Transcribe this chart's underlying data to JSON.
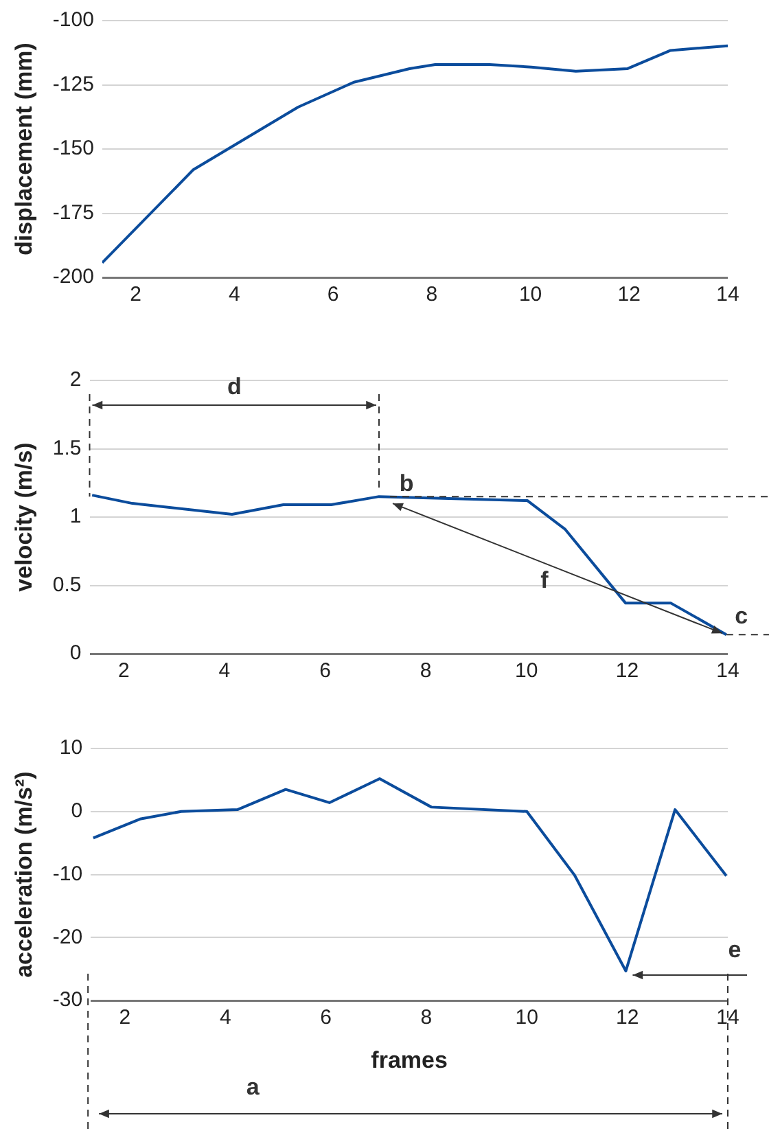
{
  "chart_data": [
    {
      "type": "line",
      "ylabel": "displacement (mm)",
      "x": [
        1.32,
        3.17,
        5.29,
        6.42,
        7.55,
        8.07,
        9.17,
        10.02,
        10.92,
        11.97,
        12.84,
        14
      ],
      "series": [
        {
          "color": "#0b4c9c",
          "values": [
            -194.3,
            -158,
            -133.7,
            -124,
            -118.7,
            -117.1,
            -117.1,
            -118.1,
            -119.7,
            -118.7,
            -111.6,
            -109.8
          ]
        }
      ],
      "xlim": [
        1.32,
        14
      ],
      "xticks": [
        2,
        4,
        6,
        8,
        10,
        12,
        14
      ],
      "ylim": [
        -200,
        -100
      ],
      "yticks": [
        -200,
        -175,
        -150,
        -125,
        -100
      ],
      "grid": "y",
      "marker": "none",
      "line_style": "solid"
    },
    {
      "type": "line",
      "ylabel": "velocity (m/s)",
      "x": [
        1.37,
        2.17,
        4.15,
        5.17,
        6.12,
        7.07,
        10.02,
        10.77,
        11.97,
        12.87,
        13.97
      ],
      "series": [
        {
          "color": "#0b4c9c",
          "values": [
            1.16,
            1.1,
            1.02,
            1.09,
            1.09,
            1.15,
            1.12,
            0.91,
            0.37,
            0.37,
            0.14
          ]
        }
      ],
      "xlim": [
        1.32,
        14
      ],
      "xticks": [
        2,
        4,
        6,
        8,
        10,
        12,
        14
      ],
      "ylim": [
        0,
        2
      ],
      "yticks": [
        0,
        0.5,
        1,
        1.5,
        2
      ],
      "grid": "y",
      "marker": "none",
      "line_style": "solid",
      "annotations": [
        {
          "text": "b",
          "x": 7.07,
          "y": 1.15
        },
        {
          "text": "c",
          "x": 13.97,
          "y": 0.14
        },
        "d",
        "f"
      ]
    },
    {
      "type": "line",
      "ylabel": "acceleration (m/s²)",
      "xlabel": "frames",
      "x": [
        1.37,
        2.3,
        3.12,
        4.24,
        5.2,
        6.07,
        7.07,
        8.1,
        10.0,
        10.95,
        11.97,
        12.95,
        13.97
      ],
      "series": [
        {
          "color": "#0b4c9c",
          "values": [
            -4.2,
            -1.2,
            0,
            0.3,
            3.5,
            1.4,
            5.2,
            0.7,
            0,
            -10.1,
            -25.3,
            0.3,
            -10.2
          ]
        }
      ],
      "xlim": [
        1.32,
        14
      ],
      "xticks": [
        2,
        4,
        6,
        8,
        10,
        12,
        14
      ],
      "ylim": [
        -30,
        10
      ],
      "yticks": [
        -30,
        -20,
        -10,
        0,
        10
      ],
      "grid": "y",
      "marker": "none",
      "line_style": "solid",
      "annotations": [
        {
          "text": "e",
          "x": 11.97,
          "y": -25.3
        },
        "a"
      ]
    }
  ]
}
